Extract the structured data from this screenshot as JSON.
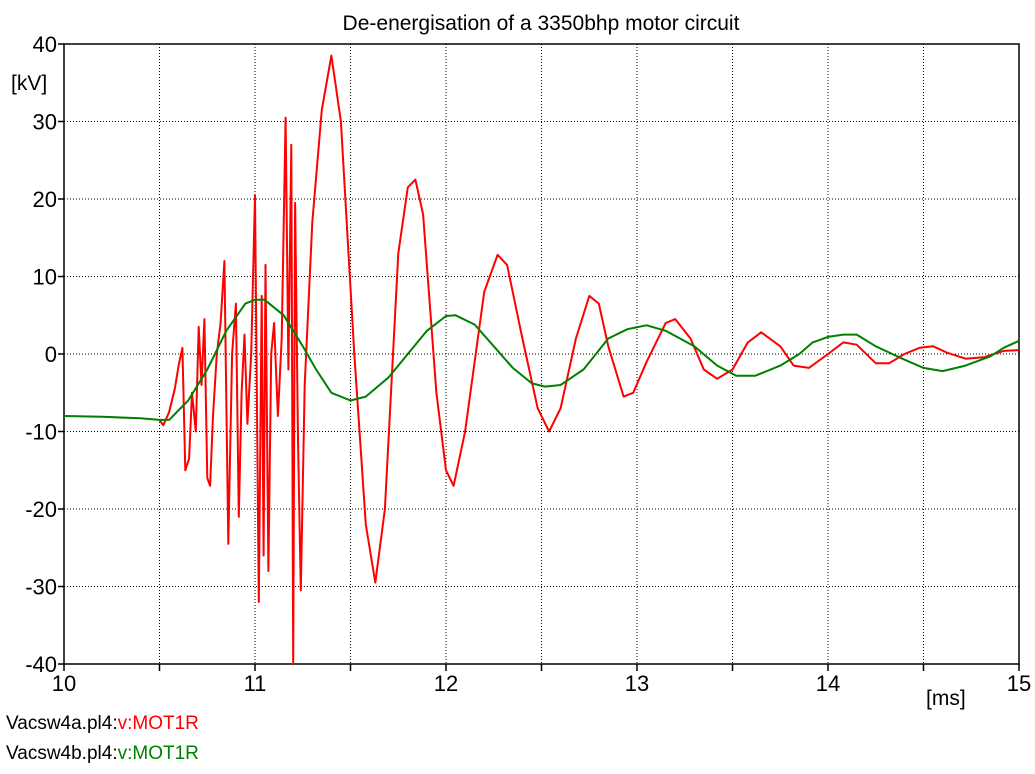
{
  "chart_data": {
    "type": "line",
    "title": "De-energisation of a 3350bhp motor circuit",
    "xlabel": "[ms]",
    "ylabel": "[kV]",
    "xlim": [
      10,
      15
    ],
    "ylim": [
      -40,
      40
    ],
    "xticks": [
      10,
      11,
      12,
      13,
      14,
      15
    ],
    "yticks": [
      -40,
      -30,
      -20,
      -10,
      0,
      10,
      20,
      30,
      40
    ],
    "grid": true,
    "series": [
      {
        "name": "Vacsw4a.pl4:",
        "label": "v:MOT1R",
        "color": "#ff0000",
        "points": [
          [
            10.5,
            -8.5
          ],
          [
            10.52,
            -9.2
          ],
          [
            10.55,
            -7.5
          ],
          [
            10.58,
            -4.5
          ],
          [
            10.6,
            -1.5
          ],
          [
            10.62,
            0.8
          ],
          [
            10.635,
            -15.0
          ],
          [
            10.655,
            -13.5
          ],
          [
            10.67,
            -5.0
          ],
          [
            10.69,
            -10.0
          ],
          [
            10.705,
            3.5
          ],
          [
            10.72,
            -4.0
          ],
          [
            10.735,
            4.5
          ],
          [
            10.75,
            -16.0
          ],
          [
            10.765,
            -17.0
          ],
          [
            10.78,
            -8.0
          ],
          [
            10.8,
            0.0
          ],
          [
            10.82,
            4.0
          ],
          [
            10.84,
            12.0
          ],
          [
            10.86,
            -24.5
          ],
          [
            10.88,
            0.0
          ],
          [
            10.9,
            6.5
          ],
          [
            10.915,
            -21.0
          ],
          [
            10.93,
            -5.0
          ],
          [
            10.945,
            2.5
          ],
          [
            10.96,
            -9.0
          ],
          [
            10.98,
            0.0
          ],
          [
            11.0,
            20.5
          ],
          [
            11.02,
            -32.0
          ],
          [
            11.035,
            7.5
          ],
          [
            11.045,
            -26.0
          ],
          [
            11.055,
            11.5
          ],
          [
            11.07,
            -28.0
          ],
          [
            11.085,
            0.0
          ],
          [
            11.1,
            4.0
          ],
          [
            11.12,
            -8.0
          ],
          [
            11.14,
            2.0
          ],
          [
            11.16,
            30.5
          ],
          [
            11.175,
            -2.0
          ],
          [
            11.19,
            27.0
          ],
          [
            11.2,
            -40.0
          ],
          [
            11.21,
            19.5
          ],
          [
            11.225,
            -11.0
          ],
          [
            11.24,
            -30.5
          ],
          [
            11.26,
            -4.0
          ],
          [
            11.3,
            17.0
          ],
          [
            11.35,
            31.5
          ],
          [
            11.4,
            38.5
          ],
          [
            11.45,
            30.0
          ],
          [
            11.52,
            0.0
          ],
          [
            11.58,
            -22.0
          ],
          [
            11.63,
            -29.5
          ],
          [
            11.68,
            -20.0
          ],
          [
            11.75,
            13.0
          ],
          [
            11.8,
            21.5
          ],
          [
            11.84,
            22.5
          ],
          [
            11.88,
            18.0
          ],
          [
            11.95,
            -5.0
          ],
          [
            12.0,
            -15.0
          ],
          [
            12.04,
            -17.0
          ],
          [
            12.1,
            -10.0
          ],
          [
            12.2,
            8.0
          ],
          [
            12.27,
            12.8
          ],
          [
            12.32,
            11.5
          ],
          [
            12.4,
            2.0
          ],
          [
            12.48,
            -7.0
          ],
          [
            12.54,
            -10.0
          ],
          [
            12.6,
            -7.0
          ],
          [
            12.68,
            2.0
          ],
          [
            12.75,
            7.5
          ],
          [
            12.8,
            6.5
          ],
          [
            12.85,
            1.0
          ],
          [
            12.93,
            -5.5
          ],
          [
            12.98,
            -5.0
          ],
          [
            13.05,
            -1.0
          ],
          [
            13.15,
            4.0
          ],
          [
            13.2,
            4.5
          ],
          [
            13.28,
            2.0
          ],
          [
            13.35,
            -2.0
          ],
          [
            13.42,
            -3.2
          ],
          [
            13.5,
            -2.0
          ],
          [
            13.58,
            1.5
          ],
          [
            13.65,
            2.8
          ],
          [
            13.75,
            1.0
          ],
          [
            13.82,
            -1.5
          ],
          [
            13.9,
            -1.8
          ],
          [
            14.0,
            0.0
          ],
          [
            14.08,
            1.5
          ],
          [
            14.15,
            1.2
          ],
          [
            14.25,
            -1.2
          ],
          [
            14.32,
            -1.2
          ],
          [
            14.4,
            0.0
          ],
          [
            14.48,
            0.8
          ],
          [
            14.55,
            1.0
          ],
          [
            14.62,
            0.2
          ],
          [
            14.72,
            -0.6
          ],
          [
            14.82,
            -0.4
          ],
          [
            14.92,
            0.4
          ],
          [
            15.0,
            0.5
          ]
        ]
      },
      {
        "name": "Vacsw4b.pl4:",
        "label": "v:MOT1R",
        "color": "#008000",
        "points": [
          [
            10.0,
            -8.0
          ],
          [
            10.2,
            -8.1
          ],
          [
            10.4,
            -8.3
          ],
          [
            10.5,
            -8.5
          ],
          [
            10.55,
            -8.5
          ],
          [
            10.65,
            -6.0
          ],
          [
            10.75,
            -2.0
          ],
          [
            10.85,
            3.0
          ],
          [
            10.95,
            6.5
          ],
          [
            11.0,
            7.0
          ],
          [
            11.05,
            7.0
          ],
          [
            11.15,
            5.0
          ],
          [
            11.25,
            1.0
          ],
          [
            11.32,
            -2.0
          ],
          [
            11.4,
            -5.0
          ],
          [
            11.5,
            -6.0
          ],
          [
            11.58,
            -5.5
          ],
          [
            11.7,
            -3.0
          ],
          [
            11.8,
            0.0
          ],
          [
            11.9,
            3.0
          ],
          [
            12.0,
            4.9
          ],
          [
            12.05,
            5.0
          ],
          [
            12.15,
            3.8
          ],
          [
            12.25,
            1.0
          ],
          [
            12.35,
            -1.8
          ],
          [
            12.45,
            -3.8
          ],
          [
            12.52,
            -4.2
          ],
          [
            12.6,
            -4.0
          ],
          [
            12.72,
            -2.0
          ],
          [
            12.85,
            2.0
          ],
          [
            12.95,
            3.2
          ],
          [
            13.05,
            3.7
          ],
          [
            13.15,
            3.0
          ],
          [
            13.3,
            1.0
          ],
          [
            13.42,
            -1.5
          ],
          [
            13.52,
            -2.8
          ],
          [
            13.62,
            -2.8
          ],
          [
            13.75,
            -1.5
          ],
          [
            13.85,
            0.0
          ],
          [
            13.92,
            1.5
          ],
          [
            14.0,
            2.2
          ],
          [
            14.08,
            2.5
          ],
          [
            14.15,
            2.5
          ],
          [
            14.25,
            1.0
          ],
          [
            14.38,
            -0.5
          ],
          [
            14.5,
            -1.8
          ],
          [
            14.6,
            -2.2
          ],
          [
            14.72,
            -1.5
          ],
          [
            14.85,
            -0.3
          ],
          [
            14.92,
            0.8
          ],
          [
            15.0,
            1.7
          ]
        ]
      }
    ]
  }
}
